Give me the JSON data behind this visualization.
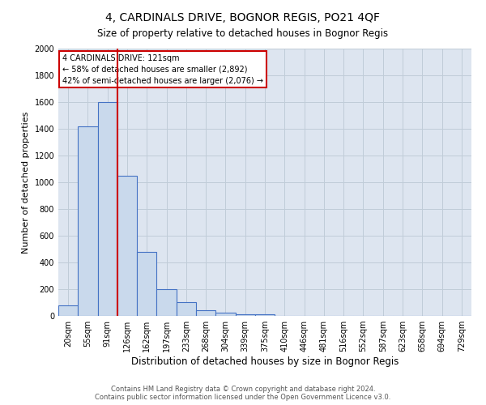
{
  "title": "4, CARDINALS DRIVE, BOGNOR REGIS, PO21 4QF",
  "subtitle": "Size of property relative to detached houses in Bognor Regis",
  "xlabel": "Distribution of detached houses by size in Bognor Regis",
  "ylabel": "Number of detached properties",
  "categories": [
    "20sqm",
    "55sqm",
    "91sqm",
    "126sqm",
    "162sqm",
    "197sqm",
    "233sqm",
    "268sqm",
    "304sqm",
    "339sqm",
    "375sqm",
    "410sqm",
    "446sqm",
    "481sqm",
    "516sqm",
    "552sqm",
    "587sqm",
    "623sqm",
    "658sqm",
    "694sqm",
    "729sqm"
  ],
  "bar_heights": [
    80,
    1420,
    1600,
    1050,
    480,
    200,
    105,
    40,
    25,
    15,
    15,
    0,
    0,
    0,
    0,
    0,
    0,
    0,
    0,
    0,
    0
  ],
  "bar_color": "#c9d9ec",
  "bar_edge_color": "#4472c4",
  "bar_edge_width": 0.8,
  "red_line_x": 2.5,
  "red_line_color": "#cc0000",
  "annotation_line1": "4 CARDINALS DRIVE: 121sqm",
  "annotation_line2": "← 58% of detached houses are smaller (2,892)",
  "annotation_line3": "42% of semi-detached houses are larger (2,076) →",
  "annotation_box_facecolor": "#ffffff",
  "annotation_box_edgecolor": "#cc0000",
  "ylim": [
    0,
    2000
  ],
  "yticks": [
    0,
    200,
    400,
    600,
    800,
    1000,
    1200,
    1400,
    1600,
    1800,
    2000
  ],
  "grid_color": "#c0ccd8",
  "bg_color": "#dde5f0",
  "footer_line1": "Contains HM Land Registry data © Crown copyright and database right 2024.",
  "footer_line2": "Contains public sector information licensed under the Open Government Licence v3.0.",
  "title_fontsize": 10,
  "subtitle_fontsize": 8.5,
  "xlabel_fontsize": 8.5,
  "ylabel_fontsize": 8,
  "tick_fontsize": 7,
  "footer_fontsize": 6,
  "annotation_fontsize": 7
}
